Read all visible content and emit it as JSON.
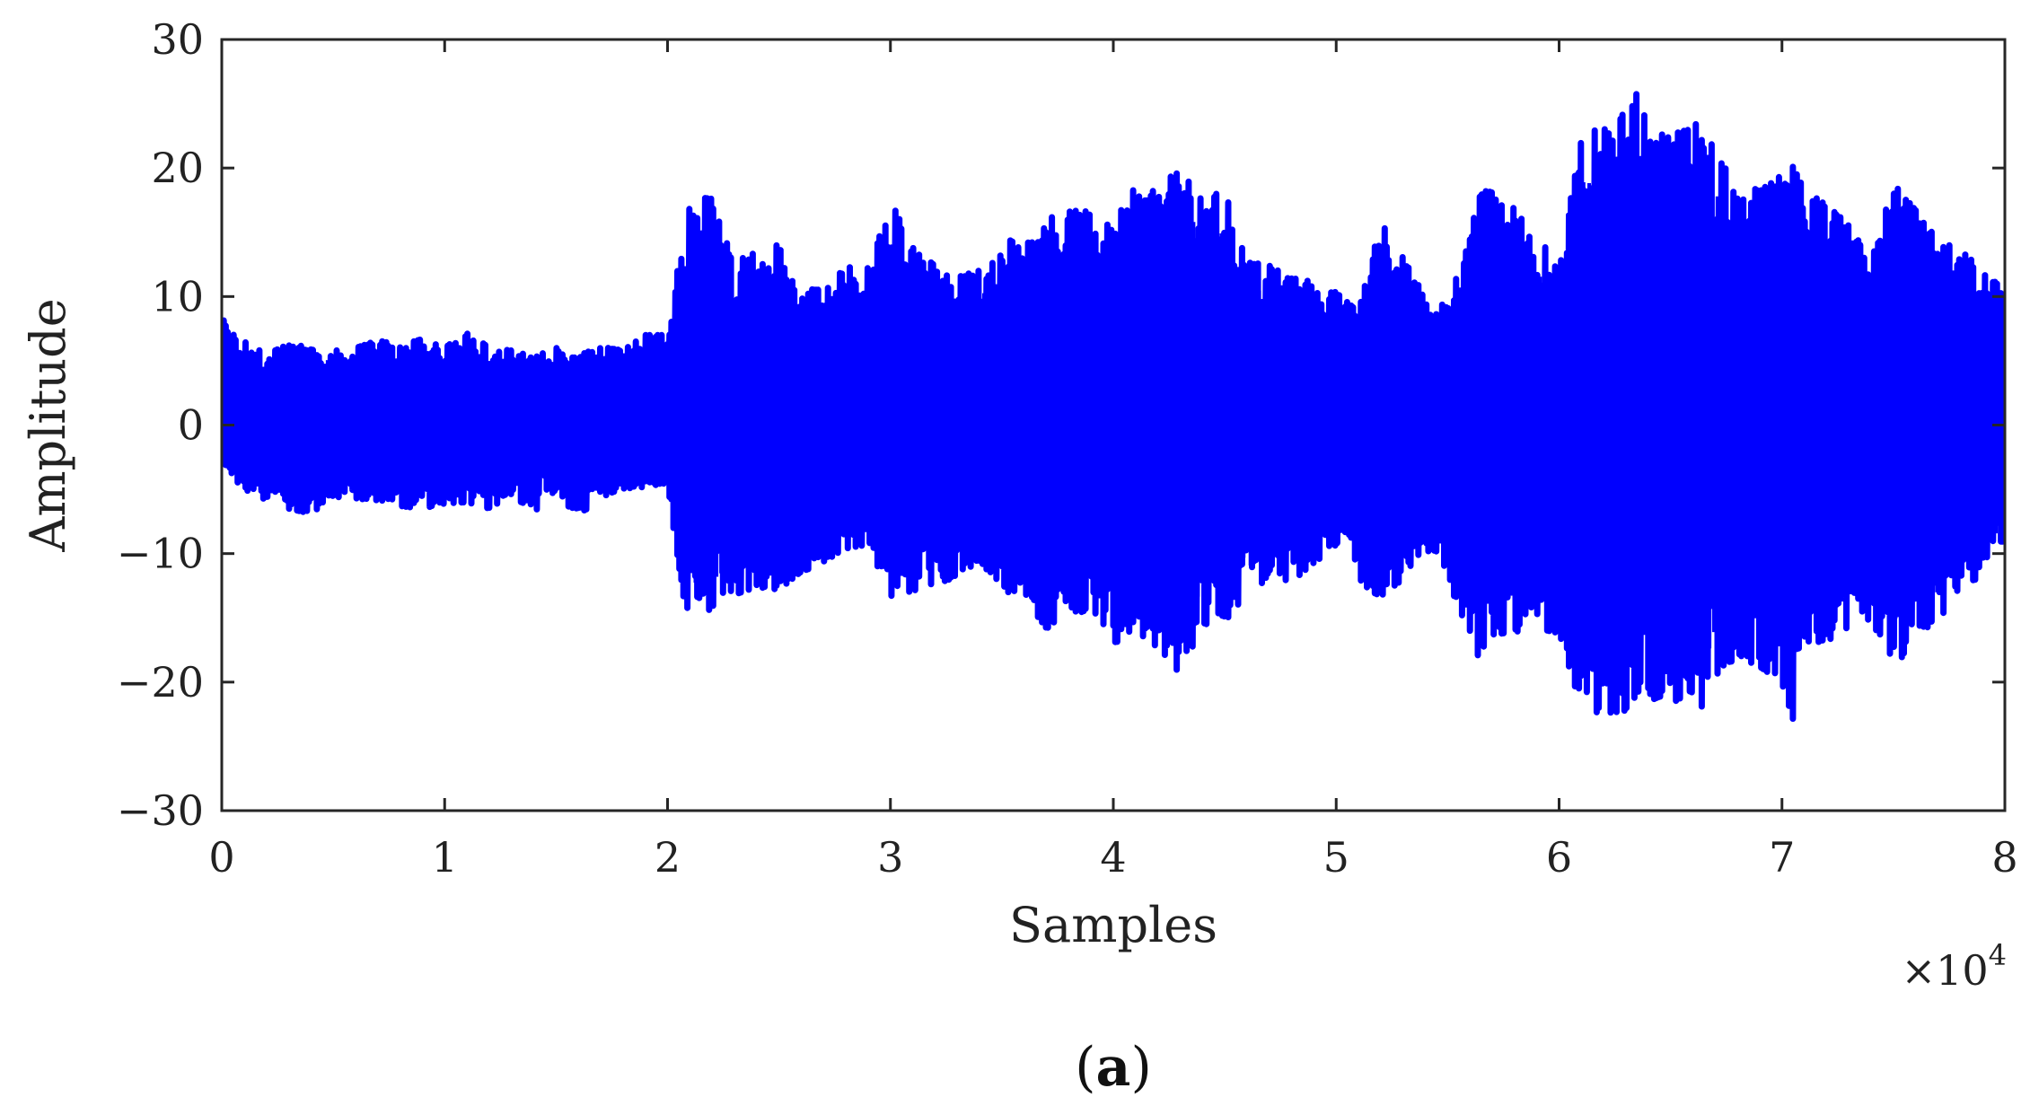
{
  "chart_data": {
    "type": "line",
    "xlabel": "Samples",
    "ylabel": "Amplitude",
    "caption_open": "(",
    "caption_letter": "a",
    "caption_close": ")",
    "x_multiplier_base": "×10",
    "x_multiplier_exp": "4",
    "xlim": [
      0,
      8
    ],
    "ylim": [
      -30,
      30
    ],
    "xticks": [
      0,
      1,
      2,
      3,
      4,
      5,
      6,
      7,
      8
    ],
    "yticks": [
      30,
      20,
      10,
      0,
      -10,
      -20,
      -30
    ],
    "xtick_labels": [
      "0",
      "1",
      "2",
      "3",
      "4",
      "5",
      "6",
      "7",
      "8"
    ],
    "ytick_labels": [
      "30",
      "20",
      "10",
      "0",
      "−10",
      "−20",
      "−30"
    ],
    "grid": false,
    "series": [
      {
        "color": "#0000ff",
        "envelope_upper": [
          [
            0.0,
            8.3
          ],
          [
            0.1,
            6.5
          ],
          [
            0.2,
            5.5
          ],
          [
            0.3,
            6.3
          ],
          [
            0.4,
            6.5
          ],
          [
            0.5,
            5.8
          ],
          [
            0.6,
            6.0
          ],
          [
            0.7,
            6.6
          ],
          [
            0.8,
            6.2
          ],
          [
            0.9,
            6.7
          ],
          [
            1.0,
            6.0
          ],
          [
            1.1,
            7.3
          ],
          [
            1.2,
            6.0
          ],
          [
            1.3,
            5.8
          ],
          [
            1.4,
            5.3
          ],
          [
            1.5,
            6.0
          ],
          [
            1.6,
            5.4
          ],
          [
            1.7,
            6.1
          ],
          [
            1.8,
            5.8
          ],
          [
            1.9,
            7.0
          ],
          [
            2.0,
            7.0
          ],
          [
            2.05,
            12.6
          ],
          [
            2.1,
            17.8
          ],
          [
            2.2,
            17.6
          ],
          [
            2.3,
            13.4
          ],
          [
            2.4,
            13.8
          ],
          [
            2.5,
            14.0
          ],
          [
            2.6,
            10.6
          ],
          [
            2.7,
            10.5
          ],
          [
            2.8,
            12.3
          ],
          [
            2.9,
            12.2
          ],
          [
            3.0,
            17.5
          ],
          [
            3.1,
            13.8
          ],
          [
            3.2,
            12.4
          ],
          [
            3.3,
            11.8
          ],
          [
            3.4,
            12.0
          ],
          [
            3.5,
            14.7
          ],
          [
            3.6,
            13.8
          ],
          [
            3.7,
            16.0
          ],
          [
            3.8,
            16.7
          ],
          [
            3.9,
            16.6
          ],
          [
            4.0,
            15.3
          ],
          [
            4.1,
            19.3
          ],
          [
            4.2,
            17.9
          ],
          [
            4.3,
            20.5
          ],
          [
            4.4,
            17.8
          ],
          [
            4.5,
            18.1
          ],
          [
            4.6,
            13.1
          ],
          [
            4.7,
            12.4
          ],
          [
            4.8,
            11.4
          ],
          [
            4.9,
            11.3
          ],
          [
            5.0,
            10.3
          ],
          [
            5.1,
            8.8
          ],
          [
            5.2,
            15.8
          ],
          [
            5.3,
            13.0
          ],
          [
            5.4,
            10.2
          ],
          [
            5.5,
            9.1
          ],
          [
            5.6,
            17.2
          ],
          [
            5.7,
            18.6
          ],
          [
            5.8,
            16.8
          ],
          [
            5.9,
            14.4
          ],
          [
            6.0,
            12.9
          ],
          [
            6.1,
            22.2
          ],
          [
            6.2,
            23.4
          ],
          [
            6.3,
            24.4
          ],
          [
            6.35,
            26.2
          ],
          [
            6.4,
            23.1
          ],
          [
            6.5,
            22.3
          ],
          [
            6.6,
            23.7
          ],
          [
            6.7,
            21.5
          ],
          [
            6.8,
            18.2
          ],
          [
            6.9,
            18.4
          ],
          [
            7.0,
            19.6
          ],
          [
            7.05,
            20.1
          ],
          [
            7.1,
            18.3
          ],
          [
            7.2,
            17.1
          ],
          [
            7.3,
            15.6
          ],
          [
            7.4,
            12.7
          ],
          [
            7.5,
            18.8
          ],
          [
            7.6,
            16.7
          ],
          [
            7.7,
            14.6
          ],
          [
            7.8,
            13.4
          ],
          [
            7.9,
            12.8
          ],
          [
            8.0,
            10.0
          ]
        ],
        "envelope_lower": [
          [
            0.0,
            -3.0
          ],
          [
            0.1,
            -5.2
          ],
          [
            0.2,
            -5.8
          ],
          [
            0.3,
            -6.5
          ],
          [
            0.4,
            -6.9
          ],
          [
            0.5,
            -5.6
          ],
          [
            0.6,
            -5.8
          ],
          [
            0.7,
            -6.0
          ],
          [
            0.8,
            -6.3
          ],
          [
            0.9,
            -6.5
          ],
          [
            1.0,
            -6.1
          ],
          [
            1.1,
            -6.0
          ],
          [
            1.2,
            -6.5
          ],
          [
            1.3,
            -5.4
          ],
          [
            1.4,
            -6.8
          ],
          [
            1.5,
            -5.0
          ],
          [
            1.6,
            -7.4
          ],
          [
            1.7,
            -5.6
          ],
          [
            1.8,
            -5.0
          ],
          [
            1.9,
            -4.8
          ],
          [
            2.0,
            -4.5
          ],
          [
            2.05,
            -11.2
          ],
          [
            2.1,
            -16.2
          ],
          [
            2.2,
            -14.1
          ],
          [
            2.3,
            -13.2
          ],
          [
            2.4,
            -12.6
          ],
          [
            2.5,
            -12.8
          ],
          [
            2.6,
            -11.4
          ],
          [
            2.7,
            -10.8
          ],
          [
            2.8,
            -9.6
          ],
          [
            2.9,
            -9.3
          ],
          [
            3.0,
            -13.3
          ],
          [
            3.1,
            -12.9
          ],
          [
            3.2,
            -12.4
          ],
          [
            3.3,
            -11.8
          ],
          [
            3.4,
            -10.5
          ],
          [
            3.5,
            -12.8
          ],
          [
            3.6,
            -13.5
          ],
          [
            3.7,
            -15.8
          ],
          [
            3.8,
            -15.3
          ],
          [
            3.9,
            -14.1
          ],
          [
            4.0,
            -16.9
          ],
          [
            4.1,
            -16.7
          ],
          [
            4.2,
            -17.2
          ],
          [
            4.3,
            -19.4
          ],
          [
            4.4,
            -15.5
          ],
          [
            4.5,
            -15.4
          ],
          [
            4.6,
            -13.0
          ],
          [
            4.7,
            -12.1
          ],
          [
            4.8,
            -12.2
          ],
          [
            4.9,
            -10.7
          ],
          [
            5.0,
            -9.5
          ],
          [
            5.1,
            -12.5
          ],
          [
            5.2,
            -13.3
          ],
          [
            5.3,
            -12.0
          ],
          [
            5.4,
            -9.6
          ],
          [
            5.5,
            -11.2
          ],
          [
            5.6,
            -18.8
          ],
          [
            5.7,
            -16.3
          ],
          [
            5.8,
            -16.1
          ],
          [
            5.9,
            -15.8
          ],
          [
            6.0,
            -16.2
          ],
          [
            6.1,
            -22.0
          ],
          [
            6.2,
            -22.5
          ],
          [
            6.3,
            -22.2
          ],
          [
            6.35,
            -20.9
          ],
          [
            6.4,
            -21.5
          ],
          [
            6.5,
            -20.8
          ],
          [
            6.6,
            -23.5
          ],
          [
            6.7,
            -19.5
          ],
          [
            6.8,
            -18.0
          ],
          [
            6.9,
            -18.8
          ],
          [
            7.0,
            -20.0
          ],
          [
            7.05,
            -23.9
          ],
          [
            7.1,
            -17.0
          ],
          [
            7.2,
            -16.8
          ],
          [
            7.3,
            -16.0
          ],
          [
            7.4,
            -15.0
          ],
          [
            7.5,
            -19.3
          ],
          [
            7.6,
            -16.0
          ],
          [
            7.7,
            -15.5
          ],
          [
            7.8,
            -12.5
          ],
          [
            7.9,
            -11.8
          ],
          [
            8.0,
            -9.0
          ]
        ]
      }
    ]
  }
}
